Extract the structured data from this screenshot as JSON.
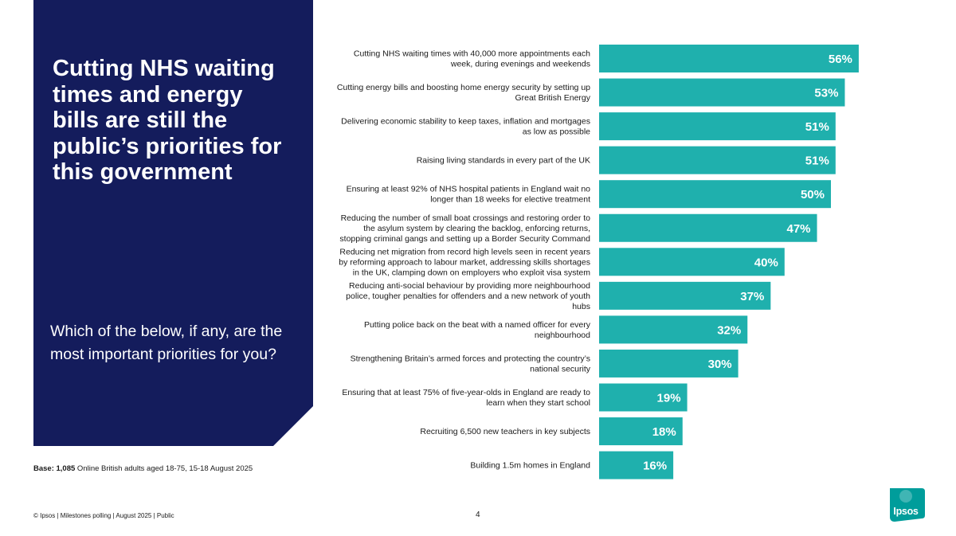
{
  "panel": {
    "headline": "Cutting NHS waiting times and energy bills are still the public’s priorities for this government",
    "question": "Which of the below, if any, are the most important priorities for you?",
    "color": "#141c5c"
  },
  "chart_data": {
    "type": "bar",
    "orientation": "horizontal",
    "bar_color": "#1fb0ad",
    "categories": [
      [
        "Cutting NHS waiting times with 40,000 more appointments each",
        "week, during evenings and weekends"
      ],
      [
        "Cutting energy bills and boosting home energy security by setting up",
        "Great British Energy"
      ],
      [
        "Delivering economic stability to keep taxes, inflation and mortgages",
        "as low as possible"
      ],
      [
        "Raising living standards in every part of the UK"
      ],
      [
        "Ensuring at least 92% of NHS hospital patients in England wait no",
        "longer than 18 weeks for elective treatment"
      ],
      [
        "Reducing the number of small boat crossings and restoring order to",
        "the asylum system by clearing the backlog, enforcing returns,",
        "stopping criminal gangs and setting up a Border Security Command"
      ],
      [
        "Reducing net migration from record high levels seen in recent years",
        "by reforming approach to labour market, addressing skills shortages",
        "in the UK,  clamping down on employers who exploit visa system"
      ],
      [
        "Reducing anti-social behaviour by providing more neighbourhood",
        "police, tougher penalties for offenders and a new network of youth",
        "hubs"
      ],
      [
        "Putting police back on the beat with a named officer for every",
        "neighbourhood"
      ],
      [
        "Strengthening Britain’s armed forces and protecting the country’s",
        "national security"
      ],
      [
        "Ensuring that at least 75% of five-year-olds in England are ready to",
        "learn when they start school"
      ],
      [
        "Recruiting 6,500 new teachers in key subjects"
      ],
      [
        "Building 1.5m homes in England"
      ]
    ],
    "values": [
      56,
      53,
      51,
      51,
      50,
      47,
      40,
      37,
      32,
      30,
      19,
      18,
      16
    ],
    "value_labels": [
      "56%",
      "53%",
      "51%",
      "51%",
      "50%",
      "47%",
      "40%",
      "37%",
      "32%",
      "30%",
      "19%",
      "18%",
      "16%"
    ],
    "xlim": [
      0,
      100
    ]
  },
  "base": {
    "bold": "Base: 1,085",
    "text": " Online British adults aged 18-75, 15-18 August 2025"
  },
  "footer": {
    "text": "© Ipsos | Milestones polling | August 2025 | Public",
    "page": "4"
  },
  "logo": {
    "text": "Ipsos",
    "color": "#009d9b"
  }
}
